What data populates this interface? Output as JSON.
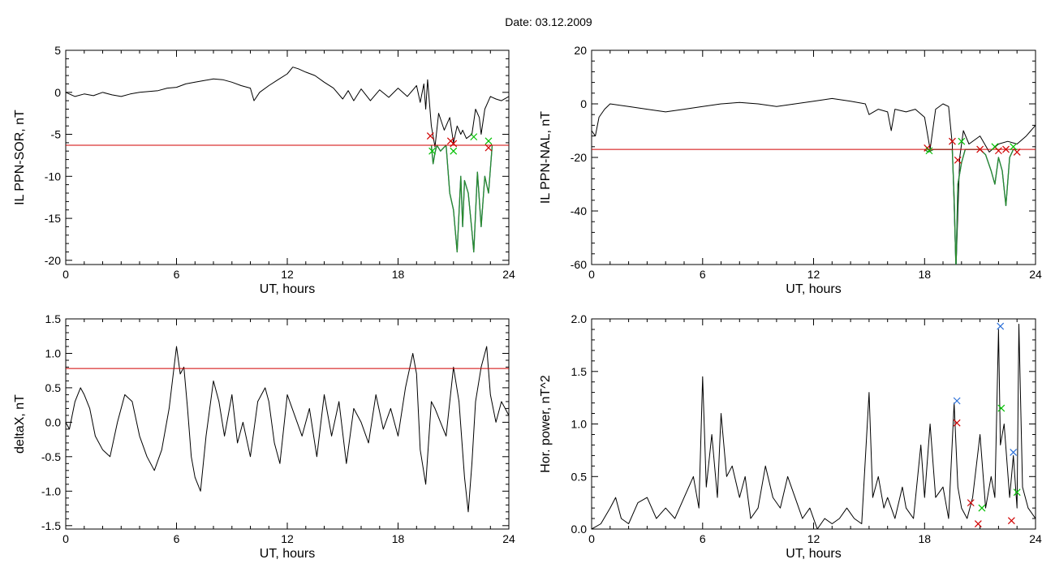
{
  "page": {
    "title": "Date:  03.12.2009"
  },
  "chart_data": [
    {
      "id": "sor",
      "type": "line",
      "xlabel": "UT, hours",
      "ylabel": "IL PPN-SOR, nT",
      "xlim": [
        0,
        24
      ],
      "ylim": [
        -20.5,
        5
      ],
      "xticks": [
        0,
        6,
        12,
        18,
        24
      ],
      "yticks": [
        5,
        0,
        -5,
        -10,
        -15,
        -20
      ],
      "threshold": -6.3,
      "series": [
        {
          "color": "#000000",
          "x": [
            0,
            0.5,
            1,
            1.5,
            2,
            2.5,
            3,
            3.5,
            4,
            4.5,
            5,
            5.5,
            6,
            6.5,
            7,
            7.5,
            8,
            8.5,
            9,
            9.5,
            10,
            10.2,
            10.5,
            11,
            11.5,
            12,
            12.3,
            12.6,
            13,
            13.5,
            14,
            14.5,
            15,
            15.3,
            15.6,
            16,
            16.5,
            17,
            17.5,
            18,
            18.5,
            19,
            19.2,
            19.4,
            19.5,
            19.6,
            19.8,
            20,
            20.2,
            20.5,
            20.8,
            21,
            21.2,
            21.4,
            21.5,
            21.7,
            22,
            22.2,
            22.4,
            22.5,
            22.7,
            23,
            23.3,
            23.6,
            24
          ],
          "y": [
            0,
            -0.5,
            -0.2,
            -0.4,
            0,
            -0.3,
            -0.5,
            -0.2,
            0,
            0.1,
            0.2,
            0.5,
            0.6,
            1.0,
            1.2,
            1.4,
            1.6,
            1.5,
            1.2,
            0.8,
            0.5,
            -1.0,
            0,
            0.8,
            1.5,
            2.2,
            3.0,
            2.8,
            2.4,
            2.0,
            1.2,
            0.5,
            -0.8,
            0.2,
            -1.0,
            0.4,
            -1.0,
            0.3,
            -0.6,
            0.5,
            -0.5,
            0.8,
            -1.2,
            1.0,
            -2.0,
            1.5,
            -4.0,
            -6.5,
            -2.5,
            -4.5,
            -3.0,
            -6.0,
            -4.0,
            -5.0,
            -4.5,
            -5.5,
            -5.0,
            -2.0,
            -3.0,
            -5.0,
            -2.0,
            -0.5,
            -0.8,
            -1.0,
            -0.5
          ]
        },
        {
          "color": "#1f5fc8",
          "x": [
            19.8,
            19.9,
            20.0,
            20.1,
            20.3,
            20.6,
            20.8,
            21.0,
            21.2,
            21.4,
            21.5,
            21.6,
            21.8,
            22.0,
            22.1,
            22.3,
            22.5,
            22.7,
            22.9,
            23.1
          ],
          "y": [
            -6.3,
            -8.5,
            -7.2,
            -6.3,
            -7.0,
            -6.3,
            -12.0,
            -14.0,
            -19.0,
            -10.0,
            -16.0,
            -10.5,
            -12.0,
            -16.5,
            -19.0,
            -9.5,
            -16.0,
            -10.0,
            -12.0,
            -6.3
          ]
        },
        {
          "color": "#2a8a2a",
          "x": [
            19.8,
            19.9,
            20.0,
            20.1,
            20.3,
            20.6,
            20.8,
            21.0,
            21.2,
            21.4,
            21.5,
            21.6,
            21.8,
            22.0,
            22.1,
            22.3,
            22.5,
            22.7,
            22.9,
            23.1
          ],
          "y": [
            -6.3,
            -8.5,
            -7.2,
            -6.3,
            -7.0,
            -6.3,
            -12.0,
            -14.0,
            -19.0,
            -10.0,
            -16.0,
            -10.5,
            -12.0,
            -16.5,
            -19.0,
            -9.5,
            -16.0,
            -10.0,
            -12.0,
            -6.3
          ]
        }
      ],
      "markers": [
        {
          "x": 19.75,
          "y": -5.2,
          "color": "#d00000"
        },
        {
          "x": 19.85,
          "y": -7.0,
          "color": "#00c000"
        },
        {
          "x": 20.85,
          "y": -5.8,
          "color": "#d00000"
        },
        {
          "x": 21.0,
          "y": -6.1,
          "color": "#d00000"
        },
        {
          "x": 21.0,
          "y": -7.0,
          "color": "#00c000"
        },
        {
          "x": 22.1,
          "y": -5.3,
          "color": "#00c000"
        },
        {
          "x": 22.9,
          "y": -5.8,
          "color": "#00c000"
        },
        {
          "x": 22.9,
          "y": -6.6,
          "color": "#d00000"
        }
      ]
    },
    {
      "id": "nal",
      "type": "line",
      "xlabel": "UT, hours",
      "ylabel": "IL PPN-NAL, nT",
      "xlim": [
        0,
        24
      ],
      "ylim": [
        -60,
        20
      ],
      "xticks": [
        0,
        6,
        12,
        18,
        24
      ],
      "yticks": [
        20,
        0,
        -20,
        -40,
        -60
      ],
      "threshold": -17,
      "series": [
        {
          "color": "#000000",
          "x": [
            0,
            0.2,
            0.4,
            0.7,
            1,
            2,
            3,
            4,
            5,
            6,
            7,
            8,
            9,
            10,
            11,
            12,
            13,
            14,
            14.8,
            15.0,
            15.5,
            16.0,
            16.2,
            16.4,
            17,
            17.5,
            18.0,
            18.3,
            18.6,
            19.0,
            19.3,
            19.5,
            19.7,
            19.9,
            20.1,
            20.4,
            21,
            21.5,
            22,
            22.5,
            23,
            23.5,
            24
          ],
          "y": [
            -10,
            -12,
            -5,
            -2,
            0,
            -1,
            -2,
            -3,
            -2,
            -1,
            0,
            0.5,
            0,
            -1,
            0,
            1,
            2,
            1,
            0,
            -4,
            -2,
            -3,
            -10,
            -2,
            -3,
            -2,
            -5,
            -17,
            -2,
            0,
            -1,
            -15,
            -62,
            -20,
            -10,
            -15,
            -12,
            -18,
            -15,
            -14,
            -15,
            -12,
            -8
          ]
        },
        {
          "color": "#1f5fc8",
          "x": [
            18.0,
            18.2,
            18.5,
            19.5,
            19.6,
            19.7,
            19.8,
            20.0,
            20.2,
            21.0,
            21.3,
            21.6,
            21.8,
            22.0,
            22.2,
            22.4,
            22.6,
            22.8,
            23.0
          ],
          "y": [
            -17,
            -18,
            -17,
            -17,
            -35,
            -62,
            -30,
            -22,
            -17,
            -17,
            -19,
            -25,
            -30,
            -20,
            -25,
            -38,
            -20,
            -17,
            -17
          ]
        },
        {
          "color": "#2a8a2a",
          "x": [
            18.0,
            18.2,
            18.5,
            19.5,
            19.6,
            19.7,
            19.8,
            20.0,
            20.2,
            21.0,
            21.3,
            21.6,
            21.8,
            22.0,
            22.2,
            22.4,
            22.6,
            22.8,
            23.0
          ],
          "y": [
            -17,
            -18,
            -17,
            -17,
            -35,
            -62,
            -30,
            -22,
            -17,
            -17,
            -19,
            -25,
            -30,
            -20,
            -25,
            -38,
            -20,
            -17,
            -17
          ]
        }
      ],
      "markers": [
        {
          "x": 18.15,
          "y": -16.5,
          "color": "#d00000"
        },
        {
          "x": 18.25,
          "y": -17.5,
          "color": "#00c000"
        },
        {
          "x": 19.5,
          "y": -14.0,
          "color": "#d00000"
        },
        {
          "x": 19.8,
          "y": -21.0,
          "color": "#d00000"
        },
        {
          "x": 20.0,
          "y": -14.0,
          "color": "#00c000"
        },
        {
          "x": 21.0,
          "y": -17.0,
          "color": "#d00000"
        },
        {
          "x": 21.8,
          "y": -16.0,
          "color": "#00c000"
        },
        {
          "x": 22.0,
          "y": -17.5,
          "color": "#d00000"
        },
        {
          "x": 22.4,
          "y": -17.0,
          "color": "#d00000"
        },
        {
          "x": 22.8,
          "y": -16.0,
          "color": "#00c000"
        },
        {
          "x": 23.0,
          "y": -18.0,
          "color": "#d00000"
        }
      ]
    },
    {
      "id": "deltax",
      "type": "line",
      "xlabel": "UT, hours",
      "ylabel": "deltaX, nT",
      "xlim": [
        0,
        24
      ],
      "ylim": [
        -1.55,
        1.5
      ],
      "xticks": [
        0,
        6,
        12,
        18,
        24
      ],
      "yticks": [
        1.5,
        1.0,
        0.5,
        0.0,
        -0.5,
        -1.0,
        -1.5
      ],
      "tick_labels": [
        "1.5",
        "1.0",
        "0.5",
        "0.0",
        "-0.5",
        "-1.0",
        "-1.5"
      ],
      "threshold": 0.78,
      "series": [
        {
          "color": "#000000",
          "x": [
            0,
            0.2,
            0.5,
            0.8,
            1.0,
            1.3,
            1.6,
            2.0,
            2.4,
            2.8,
            3.2,
            3.6,
            4.0,
            4.4,
            4.8,
            5.2,
            5.6,
            6.0,
            6.2,
            6.4,
            6.6,
            6.8,
            7.0,
            7.3,
            7.6,
            8.0,
            8.3,
            8.6,
            9.0,
            9.3,
            9.6,
            10.0,
            10.4,
            10.8,
            11.0,
            11.3,
            11.6,
            12.0,
            12.4,
            12.8,
            13.2,
            13.6,
            14.0,
            14.4,
            14.8,
            15.2,
            15.6,
            16.0,
            16.4,
            16.8,
            17.2,
            17.6,
            18.0,
            18.4,
            18.8,
            19.0,
            19.2,
            19.5,
            19.8,
            20.0,
            20.3,
            20.6,
            21.0,
            21.3,
            21.6,
            21.8,
            22.0,
            22.2,
            22.5,
            22.8,
            23.0,
            23.3,
            23.6,
            24.0
          ],
          "y": [
            0,
            -0.1,
            0.3,
            0.5,
            0.4,
            0.2,
            -0.2,
            -0.4,
            -0.5,
            0.0,
            0.4,
            0.3,
            -0.2,
            -0.5,
            -0.7,
            -0.4,
            0.2,
            1.1,
            0.7,
            0.8,
            0.2,
            -0.5,
            -0.8,
            -1.0,
            -0.2,
            0.6,
            0.3,
            -0.2,
            0.4,
            -0.3,
            0.0,
            -0.5,
            0.3,
            0.5,
            0.3,
            -0.3,
            -0.6,
            0.4,
            0.1,
            -0.2,
            0.2,
            -0.5,
            0.4,
            -0.2,
            0.3,
            -0.6,
            0.2,
            0.0,
            -0.3,
            0.4,
            -0.1,
            0.2,
            -0.2,
            0.5,
            1.0,
            0.7,
            -0.4,
            -0.9,
            0.3,
            0.2,
            0.0,
            -0.2,
            0.8,
            0.3,
            -0.8,
            -1.3,
            -0.6,
            0.3,
            0.8,
            1.1,
            0.4,
            0.0,
            0.3,
            0.1
          ]
        }
      ],
      "markers": []
    },
    {
      "id": "power",
      "type": "line",
      "xlabel": "UT, hours",
      "ylabel": "Hor. power, nT^2",
      "xlim": [
        0,
        24
      ],
      "ylim": [
        0,
        2.0
      ],
      "xticks": [
        0,
        6,
        12,
        18,
        24
      ],
      "yticks": [
        2.0,
        1.5,
        1.0,
        0.5,
        0.0
      ],
      "tick_labels": [
        "2.0",
        "1.5",
        "1.0",
        "0.5",
        "0.0"
      ],
      "threshold": null,
      "series": [
        {
          "color": "#000000",
          "x": [
            0,
            0.5,
            1.0,
            1.3,
            1.6,
            2.0,
            2.5,
            3.0,
            3.5,
            4.0,
            4.5,
            5.0,
            5.5,
            5.8,
            6.0,
            6.2,
            6.5,
            6.8,
            7.0,
            7.3,
            7.6,
            8.0,
            8.3,
            8.6,
            9.0,
            9.4,
            9.8,
            10.2,
            10.6,
            11.0,
            11.4,
            11.8,
            12.2,
            12.6,
            13.0,
            13.4,
            13.8,
            14.2,
            14.6,
            15.0,
            15.2,
            15.5,
            15.8,
            16.0,
            16.4,
            16.8,
            17.0,
            17.4,
            17.8,
            18.0,
            18.3,
            18.6,
            19.0,
            19.3,
            19.6,
            19.8,
            20.0,
            20.3,
            20.6,
            21.0,
            21.3,
            21.6,
            21.8,
            22.0,
            22.1,
            22.3,
            22.6,
            22.8,
            23.0,
            23.1,
            23.3,
            23.6,
            24.0
          ],
          "y": [
            0.0,
            0.05,
            0.2,
            0.3,
            0.1,
            0.05,
            0.25,
            0.3,
            0.1,
            0.2,
            0.1,
            0.3,
            0.5,
            0.2,
            1.45,
            0.4,
            0.9,
            0.3,
            1.1,
            0.5,
            0.6,
            0.3,
            0.5,
            0.1,
            0.2,
            0.6,
            0.3,
            0.2,
            0.5,
            0.3,
            0.1,
            0.2,
            0.0,
            0.1,
            0.05,
            0.1,
            0.2,
            0.1,
            0.05,
            1.3,
            0.3,
            0.5,
            0.2,
            0.3,
            0.1,
            0.4,
            0.2,
            0.1,
            0.8,
            0.3,
            1.0,
            0.3,
            0.4,
            0.1,
            1.2,
            0.4,
            0.2,
            0.1,
            0.3,
            0.9,
            0.2,
            0.5,
            0.3,
            1.9,
            0.8,
            1.0,
            0.3,
            0.7,
            0.2,
            1.95,
            0.4,
            0.2,
            0.1
          ]
        }
      ],
      "markers": [
        {
          "x": 19.75,
          "y": 1.22,
          "color": "#2a6fd8"
        },
        {
          "x": 19.75,
          "y": 1.01,
          "color": "#d00000"
        },
        {
          "x": 20.5,
          "y": 0.25,
          "color": "#d00000"
        },
        {
          "x": 20.9,
          "y": 0.05,
          "color": "#d00000"
        },
        {
          "x": 21.1,
          "y": 0.2,
          "color": "#00c000"
        },
        {
          "x": 22.1,
          "y": 1.93,
          "color": "#2a6fd8"
        },
        {
          "x": 22.15,
          "y": 1.15,
          "color": "#00c000"
        },
        {
          "x": 22.8,
          "y": 0.73,
          "color": "#2a6fd8"
        },
        {
          "x": 22.7,
          "y": 0.08,
          "color": "#d00000"
        },
        {
          "x": 23.0,
          "y": 0.35,
          "color": "#00c000"
        }
      ]
    }
  ]
}
